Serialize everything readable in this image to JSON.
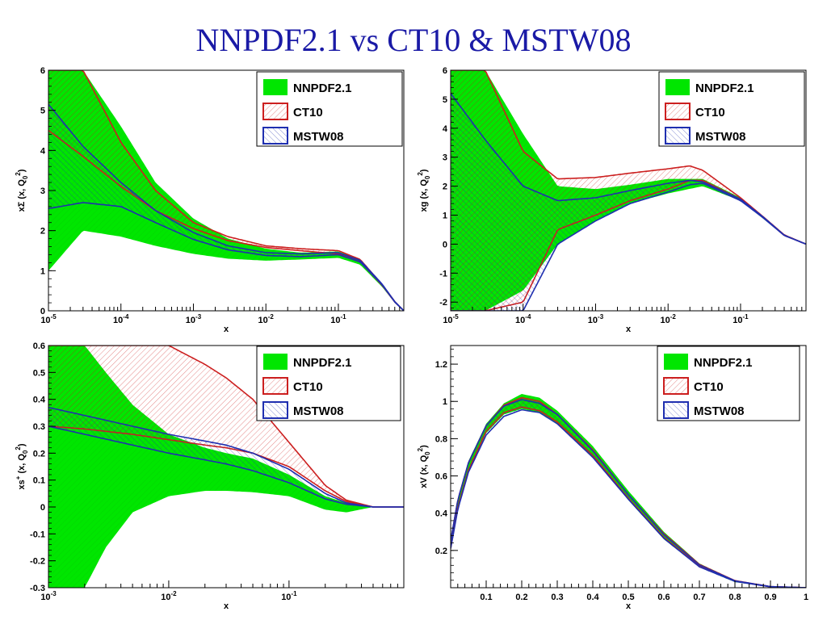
{
  "slide": {
    "title": "NNPDF2.1 vs CT10 & MSTW08"
  },
  "legend_labels": [
    "NNPDF2.1",
    "CT10",
    "MSTW08"
  ],
  "colors": {
    "nnpdf": "#00e600",
    "ct10": "#cc1f1f",
    "mstw": "#1f2fb0",
    "title": "#1a1aa6"
  },
  "chart_data": [
    {
      "type": "area",
      "xscale": "log",
      "xlim": [
        1e-05,
        0.8
      ],
      "ylim": [
        0,
        6
      ],
      "xlabel": "x",
      "ylabel": "xΣ (x, Q0²)",
      "xticks": [
        {
          "v": 1e-05,
          "label": "10-5"
        },
        {
          "v": 0.0001,
          "label": "10-4"
        },
        {
          "v": 0.001,
          "label": "10-3"
        },
        {
          "v": 0.01,
          "label": "10-2"
        },
        {
          "v": 0.1,
          "label": "10-1"
        }
      ],
      "yticks": [
        0,
        1,
        2,
        3,
        4,
        5,
        6
      ],
      "series": [
        {
          "name": "NNPDF2.1",
          "style": "band",
          "x": [
            1e-05,
            3e-05,
            0.0001,
            0.0003,
            0.001,
            0.003,
            0.01,
            0.03,
            0.1,
            0.2,
            0.4,
            0.6,
            0.8
          ],
          "lower": [
            1.0,
            2.0,
            1.85,
            1.62,
            1.42,
            1.3,
            1.25,
            1.28,
            1.32,
            1.15,
            0.6,
            0.2,
            0
          ],
          "upper": [
            6.0,
            6.0,
            4.6,
            3.2,
            2.3,
            1.8,
            1.55,
            1.45,
            1.48,
            1.28,
            0.68,
            0.25,
            0
          ]
        },
        {
          "name": "CT10",
          "style": "band",
          "x": [
            1e-05,
            3e-05,
            0.0001,
            0.0003,
            0.001,
            0.003,
            0.01,
            0.03,
            0.1,
            0.2,
            0.4,
            0.6,
            0.8
          ],
          "lower": [
            4.5,
            3.85,
            3.1,
            2.5,
            2.05,
            1.75,
            1.58,
            1.5,
            1.42,
            1.22,
            0.64,
            0.22,
            0
          ],
          "upper": [
            6.0,
            6.0,
            4.2,
            3.0,
            2.2,
            1.85,
            1.62,
            1.55,
            1.5,
            1.28,
            0.66,
            0.23,
            0
          ]
        },
        {
          "name": "MSTW08",
          "style": "band",
          "x": [
            1e-05,
            3e-05,
            0.0001,
            0.0003,
            0.001,
            0.003,
            0.01,
            0.03,
            0.1,
            0.2,
            0.4,
            0.6,
            0.8
          ],
          "lower": [
            2.55,
            2.7,
            2.6,
            2.2,
            1.78,
            1.52,
            1.38,
            1.35,
            1.4,
            1.22,
            0.65,
            0.22,
            0
          ],
          "upper": [
            5.15,
            4.1,
            3.2,
            2.5,
            1.95,
            1.62,
            1.45,
            1.42,
            1.45,
            1.26,
            0.67,
            0.23,
            0
          ]
        }
      ]
    },
    {
      "type": "area",
      "xscale": "log",
      "xlim": [
        1e-05,
        0.8
      ],
      "ylim": [
        -2.3,
        6
      ],
      "xlabel": "x",
      "ylabel": "xg (x, Q0²)",
      "xticks": [
        {
          "v": 1e-05,
          "label": "10-5"
        },
        {
          "v": 0.0001,
          "label": "10-4"
        },
        {
          "v": 0.001,
          "label": "10-3"
        },
        {
          "v": 0.01,
          "label": "10-2"
        },
        {
          "v": 0.1,
          "label": "10-1"
        }
      ],
      "yticks": [
        -2,
        -1,
        0,
        1,
        2,
        3,
        4,
        5,
        6
      ],
      "series": [
        {
          "name": "NNPDF2.1",
          "style": "band",
          "x": [
            1e-05,
            3e-05,
            0.0001,
            0.0003,
            0.001,
            0.003,
            0.01,
            0.03,
            0.1,
            0.2,
            0.4,
            0.8
          ],
          "lower": [
            -2.3,
            -2.3,
            -1.6,
            0.0,
            0.8,
            1.4,
            1.75,
            2.0,
            1.5,
            0.9,
            0.3,
            0
          ],
          "upper": [
            6.0,
            6.0,
            3.8,
            2.0,
            1.9,
            2.05,
            2.25,
            2.25,
            1.6,
            0.98,
            0.32,
            0
          ]
        },
        {
          "name": "CT10",
          "style": "band",
          "x": [
            1e-05,
            3e-05,
            0.0001,
            0.0003,
            0.001,
            0.003,
            0.01,
            0.02,
            0.03,
            0.1,
            0.2,
            0.4,
            0.8
          ],
          "lower": [
            -2.3,
            -2.3,
            -2.0,
            0.5,
            1.0,
            1.5,
            1.9,
            2.2,
            2.2,
            1.55,
            0.95,
            0.3,
            0
          ],
          "upper": [
            6.0,
            6.0,
            3.2,
            2.25,
            2.3,
            2.45,
            2.6,
            2.7,
            2.55,
            1.6,
            0.97,
            0.32,
            0
          ]
        },
        {
          "name": "MSTW08",
          "style": "band",
          "x": [
            1e-05,
            3e-05,
            0.0001,
            0.0003,
            0.001,
            0.003,
            0.01,
            0.02,
            0.03,
            0.1,
            0.2,
            0.4,
            0.8
          ],
          "lower": [
            -2.3,
            -2.3,
            -2.3,
            0.0,
            0.8,
            1.4,
            1.8,
            2.05,
            2.1,
            1.5,
            0.93,
            0.3,
            0
          ],
          "upper": [
            5.2,
            3.6,
            2.0,
            1.5,
            1.6,
            1.85,
            2.1,
            2.2,
            2.15,
            1.55,
            0.96,
            0.31,
            0
          ]
        }
      ]
    },
    {
      "type": "area",
      "xscale": "log",
      "xlim": [
        0.001,
        0.9
      ],
      "ylim": [
        -0.3,
        0.6
      ],
      "xlabel": "x",
      "ylabel": "xs+ (x, Q0²)",
      "xticks": [
        {
          "v": 0.001,
          "label": "10-3"
        },
        {
          "v": 0.01,
          "label": "10-2"
        },
        {
          "v": 0.1,
          "label": "10-1"
        }
      ],
      "yticks": [
        -0.3,
        -0.2,
        -0.1,
        0,
        0.1,
        0.2,
        0.3,
        0.4,
        0.5,
        0.6
      ],
      "series": [
        {
          "name": "NNPDF2.1",
          "style": "band",
          "x": [
            0.001,
            0.0015,
            0.002,
            0.003,
            0.005,
            0.01,
            0.02,
            0.03,
            0.05,
            0.1,
            0.2,
            0.3,
            0.5,
            0.9
          ],
          "lower": [
            -0.3,
            -0.3,
            -0.3,
            -0.15,
            -0.02,
            0.04,
            0.06,
            0.06,
            0.055,
            0.04,
            -0.01,
            -0.02,
            0,
            0
          ],
          "upper": [
            0.6,
            0.6,
            0.6,
            0.5,
            0.38,
            0.27,
            0.22,
            0.2,
            0.18,
            0.12,
            0.04,
            0.015,
            0,
            0
          ]
        },
        {
          "name": "CT10",
          "style": "band",
          "x": [
            0.001,
            0.002,
            0.005,
            0.01,
            0.02,
            0.03,
            0.05,
            0.1,
            0.2,
            0.3,
            0.5,
            0.9
          ],
          "lower": [
            0.3,
            0.29,
            0.27,
            0.25,
            0.23,
            0.22,
            0.2,
            0.15,
            0.06,
            0.02,
            0,
            0
          ],
          "upper": [
            0.6,
            0.6,
            0.6,
            0.6,
            0.53,
            0.48,
            0.4,
            0.24,
            0.08,
            0.025,
            0,
            0
          ]
        },
        {
          "name": "MSTW08",
          "style": "band",
          "x": [
            0.001,
            0.002,
            0.005,
            0.01,
            0.02,
            0.03,
            0.05,
            0.1,
            0.2,
            0.3,
            0.5,
            0.9
          ],
          "lower": [
            0.3,
            0.27,
            0.23,
            0.2,
            0.175,
            0.16,
            0.135,
            0.09,
            0.03,
            0.01,
            0,
            0
          ],
          "upper": [
            0.37,
            0.34,
            0.3,
            0.27,
            0.245,
            0.23,
            0.2,
            0.14,
            0.05,
            0.015,
            0,
            0
          ]
        }
      ]
    },
    {
      "type": "area",
      "xscale": "linear",
      "xlim": [
        0,
        1
      ],
      "ylim": [
        0,
        1.3
      ],
      "xlabel": "x",
      "ylabel": "xV (x, Q0²)",
      "xticks": [
        {
          "v": 0.1,
          "label": "0.1"
        },
        {
          "v": 0.2,
          "label": "0.2"
        },
        {
          "v": 0.3,
          "label": "0.3"
        },
        {
          "v": 0.4,
          "label": "0.4"
        },
        {
          "v": 0.5,
          "label": "0.5"
        },
        {
          "v": 0.6,
          "label": "0.6"
        },
        {
          "v": 0.7,
          "label": "0.7"
        },
        {
          "v": 0.8,
          "label": "0.8"
        },
        {
          "v": 0.9,
          "label": "0.9"
        },
        {
          "v": 1.0,
          "label": "1"
        }
      ],
      "yticks": [
        {
          "v": 0.2,
          "label": "0.2"
        },
        {
          "v": 0.4,
          "label": "0.4"
        },
        {
          "v": 0.6,
          "label": "0.6"
        },
        {
          "v": 0.8,
          "label": "0.8"
        },
        {
          "v": 1.0,
          "label": "1"
        },
        {
          "v": 1.2,
          "label": "1.2"
        }
      ],
      "series": [
        {
          "name": "NNPDF2.1",
          "style": "band",
          "x": [
            0,
            0.02,
            0.05,
            0.1,
            0.15,
            0.2,
            0.25,
            0.3,
            0.4,
            0.5,
            0.6,
            0.7,
            0.8,
            0.9,
            1.0
          ],
          "lower": [
            0.2,
            0.42,
            0.62,
            0.83,
            0.93,
            0.96,
            0.94,
            0.88,
            0.7,
            0.47,
            0.26,
            0.11,
            0.03,
            0.004,
            0
          ],
          "upper": [
            0.27,
            0.48,
            0.68,
            0.88,
            0.99,
            1.04,
            1.02,
            0.95,
            0.76,
            0.52,
            0.3,
            0.13,
            0.04,
            0.006,
            0
          ]
        },
        {
          "name": "CT10",
          "style": "band",
          "x": [
            0,
            0.02,
            0.05,
            0.1,
            0.15,
            0.2,
            0.25,
            0.3,
            0.4,
            0.5,
            0.6,
            0.7,
            0.8,
            0.9,
            1.0
          ],
          "lower": [
            0.21,
            0.43,
            0.63,
            0.84,
            0.94,
            0.97,
            0.95,
            0.89,
            0.71,
            0.48,
            0.27,
            0.115,
            0.035,
            0.005,
            0
          ],
          "upper": [
            0.25,
            0.47,
            0.67,
            0.87,
            0.98,
            1.02,
            1.0,
            0.93,
            0.74,
            0.5,
            0.29,
            0.125,
            0.038,
            0.006,
            0
          ]
        },
        {
          "name": "MSTW08",
          "style": "band",
          "x": [
            0,
            0.02,
            0.05,
            0.1,
            0.15,
            0.2,
            0.25,
            0.3,
            0.4,
            0.5,
            0.6,
            0.7,
            0.8,
            0.9,
            1.0
          ],
          "lower": [
            0.21,
            0.42,
            0.62,
            0.82,
            0.92,
            0.955,
            0.94,
            0.88,
            0.7,
            0.475,
            0.265,
            0.112,
            0.034,
            0.005,
            0
          ],
          "upper": [
            0.25,
            0.47,
            0.67,
            0.87,
            0.975,
            1.01,
            0.99,
            0.93,
            0.735,
            0.5,
            0.285,
            0.122,
            0.037,
            0.006,
            0
          ]
        }
      ]
    }
  ]
}
